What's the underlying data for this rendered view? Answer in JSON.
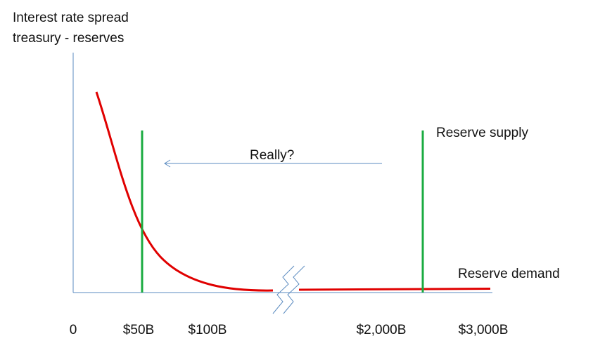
{
  "axis_label": {
    "line1": "Interest rate spread",
    "line2": "treasury - reserves"
  },
  "annotations": {
    "arrow_label": "Really?",
    "supply_label": "Reserve supply",
    "demand_label": "Reserve demand"
  },
  "x_axis_labels": [
    "0",
    "$50B",
    "$100B",
    "$2,000B",
    "$3,000B"
  ]
}
